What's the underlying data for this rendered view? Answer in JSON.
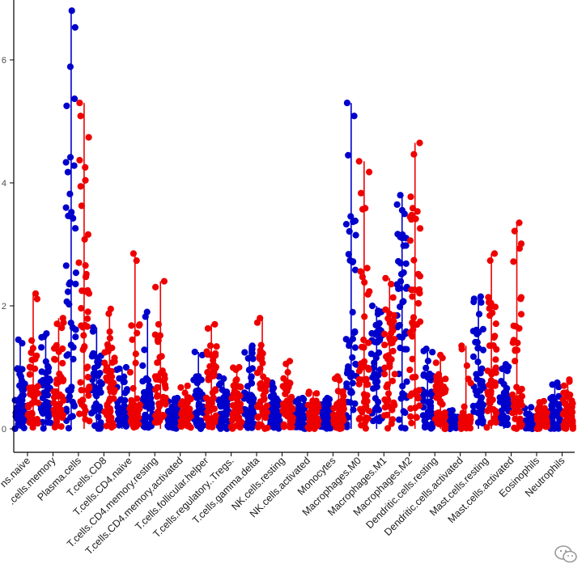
{
  "chart_data": {
    "type": "scatter",
    "title": "",
    "xlabel": "",
    "ylabel": "",
    "ylim": [
      0,
      7
    ],
    "yticks": [
      0,
      2,
      4,
      6
    ],
    "ytick_labels": [
      "0",
      "2",
      "4",
      "6"
    ],
    "grid": false,
    "legend": "none",
    "categories": [
      "B.cells.naive",
      "B.cells.memory",
      "Plasma.cells",
      "T.cells.CD8",
      "T.cells.CD4.naive",
      "T.cells.CD4.memory.resting",
      "T.cells.CD4.memory.activated",
      "T.cells.follicular.helper",
      "T.cells.regulatory..Tregs.",
      "T.cells.gamma.delta",
      "NK.cells.resting",
      "NK.cells.activated",
      "Monocytes",
      "Macrophages.M0",
      "Macrophages.M1",
      "Macrophages.M2",
      "Dendritic.cells.resting",
      "Dendritic.cells.activated",
      "Mast.cells.resting",
      "Mast.cells.activated",
      "Eosinophils",
      "Neutrophils"
    ],
    "x_tick_labels_visible": [
      "ns.naive",
      ".cells.memory",
      "Plasma.cells",
      "T.cells.CD8",
      "T.cells.CD4.naive",
      "T.cells.CD4.memory.resting",
      "T.cells.CD4.memory.activated",
      "T.cells.follicular.helper",
      "T.cells.regulatory..Tregs.",
      "T.cells.gamma.delta",
      "NK.cells.resting",
      "NK.cells.activated",
      "Monocytes",
      "Macrophages.M0",
      "Macrophages.M1",
      "Macrophages.M2",
      "Dendritic.cells.resting",
      "Dendritic.cells.activated",
      "Mast.cells.resting",
      "Mast.cells.activated",
      "Eosinophils",
      "Neutrophils"
    ],
    "series": [
      {
        "color": "#0000cc",
        "max": [
          1.45,
          1.55,
          6.8,
          1.65,
          1.0,
          1.9,
          0.5,
          1.25,
          0.85,
          1.35,
          0.75,
          0.5,
          0.5,
          5.3,
          2.0,
          3.8,
          1.3,
          0.3,
          2.15,
          1.05,
          0.35,
          0.75
        ],
        "q3": [
          0.55,
          0.8,
          2.4,
          0.75,
          0.35,
          0.7,
          0.25,
          0.65,
          0.4,
          0.55,
          0.3,
          0.25,
          0.3,
          1.8,
          1.4,
          2.4,
          0.55,
          0.1,
          1.0,
          0.5,
          0.15,
          0.3
        ]
      },
      {
        "color": "#ee0000",
        "max": [
          2.2,
          1.8,
          5.3,
          1.95,
          2.85,
          2.4,
          0.7,
          1.7,
          1.0,
          1.8,
          1.1,
          0.6,
          0.85,
          4.35,
          2.45,
          4.65,
          1.2,
          1.35,
          2.85,
          3.35,
          0.45,
          0.8
        ],
        "q3": [
          0.7,
          0.9,
          2.3,
          0.9,
          0.4,
          1.0,
          0.3,
          0.9,
          0.55,
          0.8,
          0.45,
          0.3,
          0.35,
          1.4,
          1.5,
          2.45,
          0.6,
          0.2,
          1.3,
          0.7,
          0.2,
          0.35
        ]
      }
    ]
  }
}
